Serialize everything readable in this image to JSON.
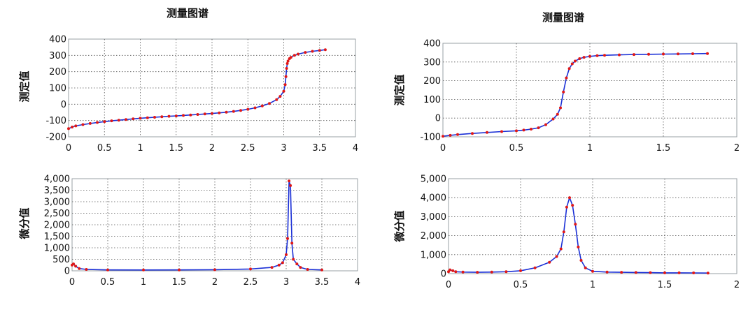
{
  "panels": [
    {
      "title": "测量图谱"
    },
    {
      "title": "测量图谱"
    }
  ],
  "colors": {
    "line": "#1a2fd6",
    "points": "#e01818",
    "grid": "#555555"
  },
  "chart_data": [
    {
      "type": "line",
      "ylabel": "测定值",
      "xlim": [
        0,
        4
      ],
      "ylim": [
        -200,
        400
      ],
      "xticks": [
        "0",
        "0.5",
        "1",
        "1.5",
        "2",
        "2.5",
        "3",
        "3.5",
        "4"
      ],
      "yticks": [
        "-200",
        "-100",
        "0",
        "100",
        "200",
        "300",
        "400"
      ],
      "grid": true,
      "x": [
        0,
        0.05,
        0.1,
        0.2,
        0.3,
        0.4,
        0.5,
        0.6,
        0.7,
        0.8,
        0.9,
        1.0,
        1.1,
        1.2,
        1.3,
        1.4,
        1.5,
        1.6,
        1.7,
        1.8,
        1.9,
        2.0,
        2.1,
        2.2,
        2.3,
        2.4,
        2.5,
        2.6,
        2.7,
        2.8,
        2.9,
        2.95,
        3.0,
        3.02,
        3.03,
        3.04,
        3.05,
        3.06,
        3.08,
        3.1,
        3.15,
        3.2,
        3.3,
        3.4,
        3.5,
        3.58
      ],
      "y": [
        -150,
        -140,
        -133,
        -125,
        -118,
        -112,
        -107,
        -102,
        -98,
        -94,
        -90,
        -86,
        -83,
        -80,
        -77,
        -74,
        -72,
        -69,
        -66,
        -63,
        -60,
        -57,
        -53,
        -49,
        -44,
        -38,
        -31,
        -22,
        -10,
        5,
        28,
        48,
        80,
        120,
        170,
        220,
        250,
        265,
        280,
        288,
        300,
        308,
        318,
        325,
        330,
        335
      ]
    },
    {
      "type": "line",
      "ylabel": "微分值",
      "xlim": [
        0,
        4
      ],
      "ylim": [
        0,
        4000
      ],
      "xticks": [
        "0",
        "0.5",
        "1",
        "1.5",
        "2",
        "2.5",
        "3",
        "3.5",
        "4"
      ],
      "yticks": [
        "0",
        "500",
        "1,000",
        "1,500",
        "2,000",
        "2,500",
        "3,000",
        "3,500",
        "4,000"
      ],
      "grid": true,
      "x": [
        0,
        0.02,
        0.05,
        0.1,
        0.2,
        0.5,
        1.0,
        1.5,
        2.0,
        2.5,
        2.8,
        2.9,
        2.95,
        3.0,
        3.02,
        3.04,
        3.06,
        3.08,
        3.1,
        3.15,
        3.2,
        3.3,
        3.5
      ],
      "y": [
        250,
        300,
        200,
        100,
        60,
        40,
        35,
        40,
        50,
        80,
        150,
        250,
        350,
        700,
        1400,
        3900,
        3700,
        1200,
        500,
        300,
        150,
        60,
        40
      ]
    },
    {
      "type": "line",
      "ylabel": "测定值",
      "xlim": [
        0,
        2
      ],
      "ylim": [
        -100,
        400
      ],
      "xticks": [
        "0",
        "0.5",
        "1",
        "1.5",
        "2"
      ],
      "yticks": [
        "-100",
        "0",
        "100",
        "200",
        "300",
        "400"
      ],
      "grid": true,
      "x": [
        0,
        0.05,
        0.1,
        0.2,
        0.3,
        0.4,
        0.5,
        0.55,
        0.6,
        0.65,
        0.7,
        0.75,
        0.78,
        0.8,
        0.82,
        0.84,
        0.86,
        0.88,
        0.9,
        0.93,
        0.96,
        1.0,
        1.05,
        1.1,
        1.2,
        1.3,
        1.4,
        1.5,
        1.6,
        1.7,
        1.8
      ],
      "y": [
        -97,
        -92,
        -88,
        -82,
        -77,
        -72,
        -68,
        -64,
        -59,
        -52,
        -35,
        -5,
        20,
        55,
        140,
        215,
        265,
        290,
        305,
        318,
        325,
        330,
        334,
        336,
        338,
        340,
        341,
        342,
        343,
        344,
        345
      ]
    },
    {
      "type": "line",
      "ylabel": "微分值",
      "xlim": [
        0,
        2
      ],
      "ylim": [
        0,
        5000
      ],
      "xticks": [
        "0",
        "0.5",
        "1",
        "1.5",
        "2"
      ],
      "yticks": [
        "0",
        "1,000",
        "2,000",
        "3,000",
        "4,000",
        "5,000"
      ],
      "grid": true,
      "x": [
        0,
        0.01,
        0.03,
        0.05,
        0.1,
        0.2,
        0.3,
        0.4,
        0.5,
        0.6,
        0.7,
        0.75,
        0.78,
        0.8,
        0.82,
        0.84,
        0.86,
        0.88,
        0.9,
        0.92,
        0.95,
        1.0,
        1.1,
        1.2,
        1.3,
        1.4,
        1.5,
        1.6,
        1.7,
        1.8
      ],
      "y": [
        100,
        200,
        150,
        100,
        80,
        70,
        80,
        100,
        150,
        300,
        600,
        900,
        1300,
        2200,
        3500,
        4000,
        3600,
        2600,
        1400,
        700,
        300,
        120,
        80,
        70,
        60,
        50,
        40,
        40,
        35,
        30
      ]
    }
  ]
}
